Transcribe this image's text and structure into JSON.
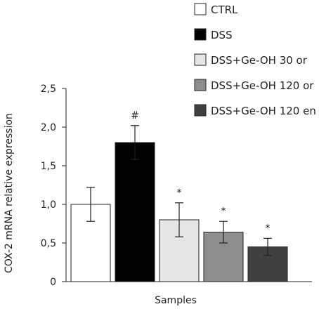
{
  "chart_data": {
    "type": "bar",
    "categories": [
      "CTRL",
      "DSS",
      "DSS+Ge-OH 30 or",
      "DSS+Ge-OH 120 or",
      "DSS+Ge-OH 120 en"
    ],
    "values": [
      1.0,
      1.8,
      0.8,
      0.64,
      0.45
    ],
    "error": [
      0.22,
      0.22,
      0.22,
      0.14,
      0.11
    ],
    "significance": [
      "",
      "#",
      "*",
      "*",
      "*"
    ],
    "colors": [
      "#ffffff",
      "#000000",
      "#e6e6e6",
      "#8e8e8e",
      "#404040"
    ],
    "title": "",
    "xlabel": "Samples",
    "ylabel": "COX-2 mRNA relative expression",
    "ylim": [
      0,
      2.5
    ],
    "yticks": [
      "0",
      "0,5",
      "1,0",
      "1,5",
      "2,0",
      "2,5"
    ],
    "legend": {
      "position": "top-right",
      "labels": [
        "CTRL",
        "DSS",
        "DSS+Ge-OH 30 or",
        "DSS+Ge-OH 120 or",
        "DSS+Ge-OH 120 en"
      ]
    },
    "grid": false
  }
}
